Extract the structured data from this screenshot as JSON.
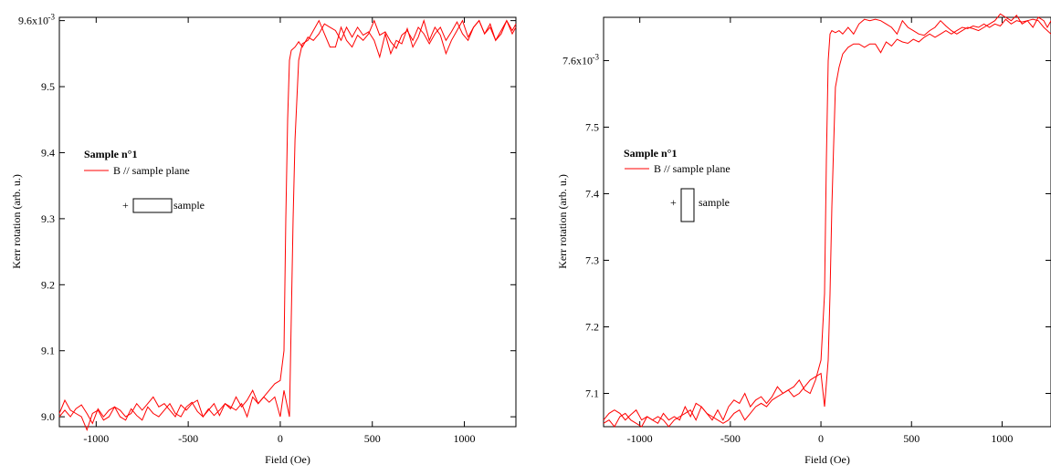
{
  "chart_data": [
    {
      "type": "line",
      "xlabel": "Field (Oe)",
      "ylabel": "Kerr rotation (arb. u.)",
      "xlim": [
        -1200,
        1280
      ],
      "ylim": [
        8.985,
        9.605
      ],
      "x_ticks": [
        -1000,
        -500,
        0,
        500,
        1000
      ],
      "x_tick_labels": [
        "-1000",
        "-500",
        "0",
        "500",
        "1000"
      ],
      "y_ticks": [
        9.0,
        9.1,
        9.2,
        9.3,
        9.4,
        9.5,
        9.6
      ],
      "y_tick_labels": [
        "9.0",
        "9.1",
        "9.2",
        "9.3",
        "9.4",
        "9.5",
        "9.6x10"
      ],
      "y_exponent": "-3",
      "grid": false,
      "legend": {
        "title": "Sample n°1",
        "label": "B // sample plane",
        "plus": "+",
        "inset": "sample",
        "inset_orientation": "horizontal",
        "placement": "left-middle"
      },
      "color": "#ff0000",
      "series": [
        {
          "branch": "ascending",
          "x": [
            -1200,
            -1170,
            -1140,
            -1110,
            -1080,
            -1050,
            -1020,
            -990,
            -960,
            -930,
            -900,
            -870,
            -840,
            -810,
            -780,
            -750,
            -720,
            -690,
            -660,
            -630,
            -600,
            -570,
            -540,
            -510,
            -480,
            -450,
            -420,
            -390,
            -360,
            -330,
            -300,
            -270,
            -240,
            -210,
            -180,
            -150,
            -120,
            -90,
            -60,
            -30,
            0,
            20,
            50,
            60,
            70,
            80,
            90,
            100,
            120,
            150,
            180,
            210,
            240,
            270,
            300,
            330,
            360,
            390,
            420,
            450,
            480,
            510,
            540,
            570,
            600,
            630,
            660,
            690,
            720,
            750,
            780,
            810,
            840,
            870,
            900,
            930,
            960,
            990,
            1020,
            1050,
            1080,
            1110,
            1140,
            1170,
            1200,
            1230,
            1260,
            1280
          ],
          "y": [
            9.0,
            9.01,
            9.0,
            9.012,
            9.018,
            9.005,
            8.99,
            9.012,
            9.0,
            9.01,
            9.015,
            9.0,
            8.995,
            9.012,
            9.002,
            8.995,
            9.015,
            9.005,
            9.0,
            9.01,
            9.02,
            9.005,
            9.0,
            9.015,
            9.022,
            9.008,
            9.0,
            9.012,
            9.002,
            9.01,
            9.02,
            9.012,
            9.03,
            9.015,
            9.025,
            9.04,
            9.02,
            9.03,
            9.022,
            9.03,
            9.0,
            9.04,
            9.0,
            9.15,
            9.3,
            9.42,
            9.48,
            9.54,
            9.565,
            9.57,
            9.585,
            9.6,
            9.58,
            9.56,
            9.56,
            9.59,
            9.57,
            9.56,
            9.578,
            9.57,
            9.58,
            9.6,
            9.578,
            9.583,
            9.568,
            9.558,
            9.578,
            9.585,
            9.57,
            9.59,
            9.58,
            9.565,
            9.58,
            9.59,
            9.57,
            9.583,
            9.598,
            9.58,
            9.57,
            9.59,
            9.6,
            9.58,
            9.59,
            9.57,
            9.58,
            9.6,
            9.585,
            9.595
          ]
        },
        {
          "branch": "descending",
          "x": [
            1280,
            1260,
            1230,
            1200,
            1170,
            1140,
            1110,
            1080,
            1050,
            1020,
            990,
            960,
            930,
            900,
            870,
            840,
            810,
            780,
            750,
            720,
            690,
            660,
            630,
            600,
            570,
            540,
            510,
            480,
            450,
            420,
            390,
            360,
            330,
            300,
            270,
            240,
            210,
            180,
            150,
            120,
            100,
            80,
            60,
            50,
            40,
            30,
            20,
            0,
            -30,
            -60,
            -90,
            -120,
            -150,
            -180,
            -210,
            -240,
            -270,
            -300,
            -330,
            -360,
            -390,
            -420,
            -450,
            -480,
            -510,
            -540,
            -570,
            -600,
            -630,
            -660,
            -690,
            -720,
            -750,
            -780,
            -810,
            -840,
            -870,
            -900,
            -930,
            -960,
            -990,
            -1020,
            -1050,
            -1080,
            -1110,
            -1140,
            -1170,
            -1200
          ],
          "y": [
            9.59,
            9.58,
            9.6,
            9.585,
            9.57,
            9.595,
            9.58,
            9.6,
            9.59,
            9.575,
            9.6,
            9.585,
            9.57,
            9.55,
            9.578,
            9.59,
            9.57,
            9.6,
            9.575,
            9.56,
            9.588,
            9.565,
            9.57,
            9.55,
            9.58,
            9.545,
            9.57,
            9.583,
            9.578,
            9.59,
            9.575,
            9.59,
            9.57,
            9.585,
            9.59,
            9.595,
            9.58,
            9.57,
            9.575,
            9.56,
            9.568,
            9.56,
            9.555,
            9.54,
            9.45,
            9.3,
            9.1,
            9.055,
            9.05,
            9.04,
            9.03,
            9.02,
            9.03,
            9.0,
            9.02,
            9.01,
            9.015,
            9.02,
            9.002,
            9.02,
            9.01,
            9.0,
            9.025,
            9.02,
            9.01,
            9.018,
            9.0,
            9.01,
            9.02,
            9.015,
            9.03,
            9.02,
            9.01,
            9.02,
            9.005,
            9.0,
            9.01,
            9.015,
            9.0,
            8.995,
            9.01,
            9.005,
            8.98,
            9.0,
            9.005,
            9.01,
            9.025,
            9.005
          ]
        }
      ]
    },
    {
      "type": "line",
      "xlabel": "Field (Oe)",
      "ylabel": "Kerr rotation (arb. u.)",
      "xlim": [
        -1200,
        1270
      ],
      "ylim": [
        7.05,
        7.665
      ],
      "x_ticks": [
        -1000,
        -500,
        0,
        500,
        1000
      ],
      "x_tick_labels": [
        "-1000",
        "-500",
        "0",
        "500",
        "1000"
      ],
      "y_ticks": [
        7.1,
        7.2,
        7.3,
        7.4,
        7.5,
        7.6
      ],
      "y_tick_labels": [
        "7.1",
        "7.2",
        "7.3",
        "7.4",
        "7.5",
        "7.6x10"
      ],
      "y_exponent": "-3",
      "grid": false,
      "legend": {
        "title": "Sample n°1",
        "label": "B // sample plane",
        "plus": "+",
        "inset": "sample",
        "inset_orientation": "vertical",
        "placement": "left-middle"
      },
      "color": "#ff0000",
      "series": [
        {
          "branch": "ascending",
          "x": [
            -1200,
            -1170,
            -1140,
            -1110,
            -1080,
            -1050,
            -1020,
            -990,
            -960,
            -930,
            -900,
            -870,
            -840,
            -810,
            -780,
            -750,
            -720,
            -690,
            -660,
            -630,
            -600,
            -570,
            -540,
            -510,
            -480,
            -450,
            -420,
            -390,
            -360,
            -330,
            -300,
            -270,
            -240,
            -210,
            -180,
            -150,
            -120,
            -90,
            -60,
            -30,
            0,
            20,
            40,
            50,
            60,
            70,
            80,
            100,
            120,
            150,
            180,
            210,
            240,
            270,
            300,
            330,
            360,
            390,
            420,
            450,
            480,
            510,
            540,
            570,
            600,
            630,
            660,
            690,
            720,
            750,
            780,
            810,
            840,
            870,
            900,
            930,
            960,
            990,
            1020,
            1050,
            1080,
            1110,
            1140,
            1170,
            1200,
            1230,
            1270
          ],
          "y": [
            7.06,
            7.07,
            7.075,
            7.07,
            7.06,
            7.068,
            7.075,
            7.06,
            7.065,
            7.06,
            7.055,
            7.07,
            7.06,
            7.065,
            7.06,
            7.08,
            7.065,
            7.085,
            7.08,
            7.07,
            7.06,
            7.075,
            7.06,
            7.08,
            7.09,
            7.085,
            7.1,
            7.08,
            7.09,
            7.095,
            7.085,
            7.095,
            7.11,
            7.1,
            7.105,
            7.095,
            7.1,
            7.11,
            7.12,
            7.125,
            7.13,
            7.08,
            7.15,
            7.25,
            7.38,
            7.47,
            7.56,
            7.59,
            7.61,
            7.62,
            7.625,
            7.625,
            7.62,
            7.625,
            7.625,
            7.612,
            7.628,
            7.622,
            7.632,
            7.628,
            7.626,
            7.632,
            7.628,
            7.635,
            7.64,
            7.635,
            7.64,
            7.645,
            7.64,
            7.645,
            7.65,
            7.648,
            7.652,
            7.65,
            7.655,
            7.65,
            7.655,
            7.652,
            7.662,
            7.655,
            7.66,
            7.658,
            7.66,
            7.662,
            7.66,
            7.65,
            7.64
          ]
        },
        {
          "branch": "descending",
          "x": [
            1270,
            1250,
            1230,
            1200,
            1170,
            1140,
            1110,
            1080,
            1050,
            1020,
            990,
            960,
            930,
            900,
            870,
            840,
            810,
            780,
            750,
            720,
            690,
            660,
            630,
            600,
            570,
            540,
            510,
            480,
            450,
            420,
            390,
            360,
            330,
            300,
            270,
            240,
            210,
            180,
            150,
            120,
            100,
            80,
            60,
            50,
            40,
            30,
            20,
            0,
            -30,
            -60,
            -90,
            -120,
            -150,
            -180,
            -210,
            -240,
            -270,
            -300,
            -330,
            -360,
            -390,
            -420,
            -450,
            -480,
            -510,
            -540,
            -570,
            -600,
            -630,
            -660,
            -690,
            -720,
            -750,
            -780,
            -810,
            -840,
            -870,
            -900,
            -930,
            -960,
            -990,
            -1020,
            -1050,
            -1080,
            -1110,
            -1140,
            -1170,
            -1200
          ],
          "y": [
            7.66,
            7.65,
            7.66,
            7.665,
            7.65,
            7.66,
            7.655,
            7.668,
            7.66,
            7.665,
            7.67,
            7.66,
            7.655,
            7.65,
            7.645,
            7.648,
            7.65,
            7.645,
            7.64,
            7.645,
            7.652,
            7.66,
            7.65,
            7.645,
            7.638,
            7.64,
            7.645,
            7.65,
            7.66,
            7.64,
            7.65,
            7.655,
            7.66,
            7.662,
            7.66,
            7.662,
            7.655,
            7.64,
            7.65,
            7.64,
            7.645,
            7.642,
            7.645,
            7.64,
            7.6,
            7.45,
            7.25,
            7.15,
            7.12,
            7.1,
            7.105,
            7.12,
            7.11,
            7.105,
            7.1,
            7.095,
            7.09,
            7.08,
            7.085,
            7.08,
            7.07,
            7.06,
            7.075,
            7.07,
            7.06,
            7.055,
            7.06,
            7.065,
            7.07,
            7.08,
            7.06,
            7.075,
            7.07,
            7.065,
            7.06,
            7.05,
            7.06,
            7.065,
            7.06,
            7.065,
            7.05,
            7.055,
            7.06,
            7.07,
            7.065,
            7.05,
            7.06,
            7.055
          ]
        }
      ]
    }
  ]
}
